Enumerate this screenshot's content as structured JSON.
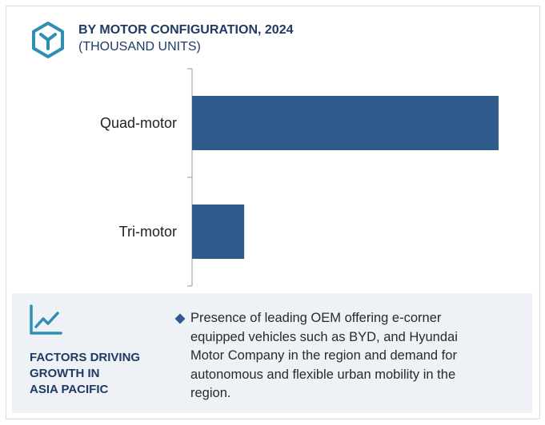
{
  "header": {
    "title": "BY MOTOR CONFIGURATION, 2024",
    "subtitle": "(THOUSAND UNITS)",
    "logo_icon": "hexagon-y-logo-icon"
  },
  "chart_data": {
    "type": "bar",
    "orientation": "horizontal",
    "title": "BY MOTOR CONFIGURATION, 2024",
    "subtitle": "(THOUSAND UNITS)",
    "categories": [
      "Quad-motor",
      "Tri-motor"
    ],
    "values": [
      100,
      17
    ],
    "xlim": [
      0,
      100
    ],
    "xaxis_visible": false,
    "grid": false,
    "legend": "none",
    "bar_color": "#2e5b8c"
  },
  "factors": {
    "icon": "trend-line-icon",
    "heading_lines": [
      "FACTORS DRIVING",
      "GROWTH IN",
      "ASIA PACIFIC"
    ],
    "bullet_icon": "diamond-bullet-icon",
    "bullet_lines": [
      "Presence of leading OEM offering e-corner",
      "equipped vehicles such as BYD, and Hyundai",
      "Motor Company in the region and  demand for",
      "autonomous and flexible urban mobility in the",
      "region."
    ]
  },
  "colors": {
    "accent": "#2e8fb5",
    "heading": "#1f3a64",
    "bar": "#2e5b8c",
    "panel_bg": "#eef1f5"
  }
}
